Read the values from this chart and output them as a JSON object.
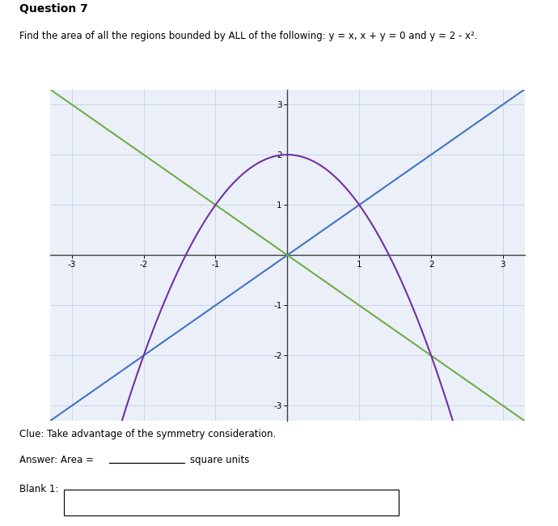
{
  "title": "Question 7",
  "subtitle": "Find the area of all the regions bounded by ALL of the following: y = x, x + y = 0 and y = 2 - x².",
  "clue_text": "Clue: Take advantage of the symmetry consideration.",
  "answer_text": "Answer: Area =",
  "answer_unit": "square units",
  "blank_label": "Blank 1:",
  "xlim": [
    -3.3,
    3.3
  ],
  "ylim": [
    -3.3,
    3.3
  ],
  "xticks": [
    -3,
    -2,
    -1,
    0,
    1,
    2,
    3
  ],
  "yticks": [
    -3,
    -2,
    -1,
    0,
    1,
    2,
    3
  ],
  "line_y_eq_x_color": "#4472C4",
  "line_x_plus_y_eq_0_color": "#70AD47",
  "parabola_color": "#7030A0",
  "line_width": 1.5,
  "grid_color": "#C8D4E8",
  "axis_color": "#404040",
  "background_color": "#FFFFFF",
  "plot_bg_color": "#EBF0F8"
}
